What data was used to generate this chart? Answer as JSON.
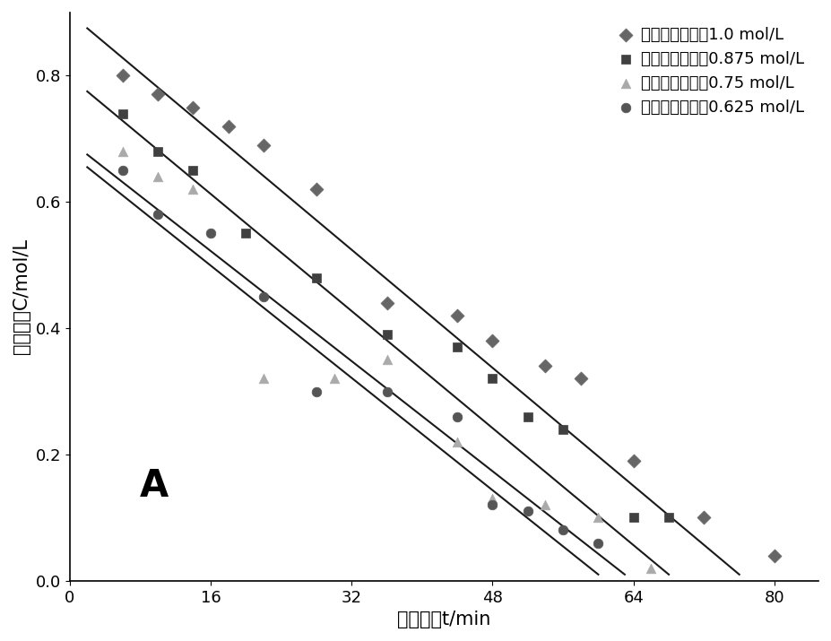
{
  "title": "A",
  "xlabel": "反应时间t/min",
  "ylabel": "蔗糖浓度C/mol/L",
  "xlim": [
    0,
    85
  ],
  "ylim": [
    0,
    0.9
  ],
  "xticks": [
    0,
    16,
    32,
    48,
    64,
    80
  ],
  "yticks": [
    0,
    0.2,
    0.4,
    0.6,
    0.8
  ],
  "series": [
    {
      "label": "初始蔗糖浓度为1.0 mol/L",
      "marker": "D",
      "color": "#666666",
      "markersize": 7,
      "x": [
        6,
        10,
        14,
        18,
        22,
        28,
        36,
        44,
        48,
        54,
        58,
        64,
        72,
        80
      ],
      "y": [
        0.8,
        0.77,
        0.75,
        0.72,
        0.69,
        0.62,
        0.44,
        0.42,
        0.38,
        0.34,
        0.32,
        0.19,
        0.1,
        0.04
      ],
      "fit_x": [
        2,
        76
      ],
      "fit_y": [
        0.875,
        0.01
      ]
    },
    {
      "label": "初始蔗糖浓度为0.875 mol/L",
      "marker": "s",
      "color": "#404040",
      "markersize": 7,
      "x": [
        6,
        10,
        14,
        20,
        28,
        36,
        44,
        48,
        52,
        56,
        64,
        68
      ],
      "y": [
        0.74,
        0.68,
        0.65,
        0.55,
        0.48,
        0.39,
        0.37,
        0.32,
        0.26,
        0.24,
        0.1,
        0.1
      ],
      "fit_x": [
        2,
        68
      ],
      "fit_y": [
        0.775,
        0.01
      ]
    },
    {
      "label": "初始蔗糖浓度为0.75 mol/L",
      "marker": "^",
      "color": "#aaaaaa",
      "markersize": 7,
      "x": [
        6,
        10,
        14,
        22,
        30,
        36,
        44,
        48,
        54,
        60,
        66
      ],
      "y": [
        0.68,
        0.64,
        0.62,
        0.32,
        0.32,
        0.35,
        0.22,
        0.13,
        0.12,
        0.1,
        0.02
      ],
      "fit_x": [
        2,
        63
      ],
      "fit_y": [
        0.675,
        0.01
      ]
    },
    {
      "label": "初始蔗糖浓度为0.625 mol/L",
      "marker": "o",
      "color": "#555555",
      "markersize": 7,
      "x": [
        6,
        10,
        16,
        22,
        28,
        36,
        44,
        48,
        52,
        56,
        60
      ],
      "y": [
        0.65,
        0.58,
        0.55,
        0.45,
        0.3,
        0.3,
        0.26,
        0.12,
        0.11,
        0.08,
        0.06
      ],
      "fit_x": [
        2,
        60
      ],
      "fit_y": [
        0.655,
        0.01
      ]
    }
  ],
  "background_color": "#ffffff",
  "line_color": "#1a1a1a",
  "label_fontsize": 15,
  "tick_fontsize": 13,
  "legend_fontsize": 13
}
